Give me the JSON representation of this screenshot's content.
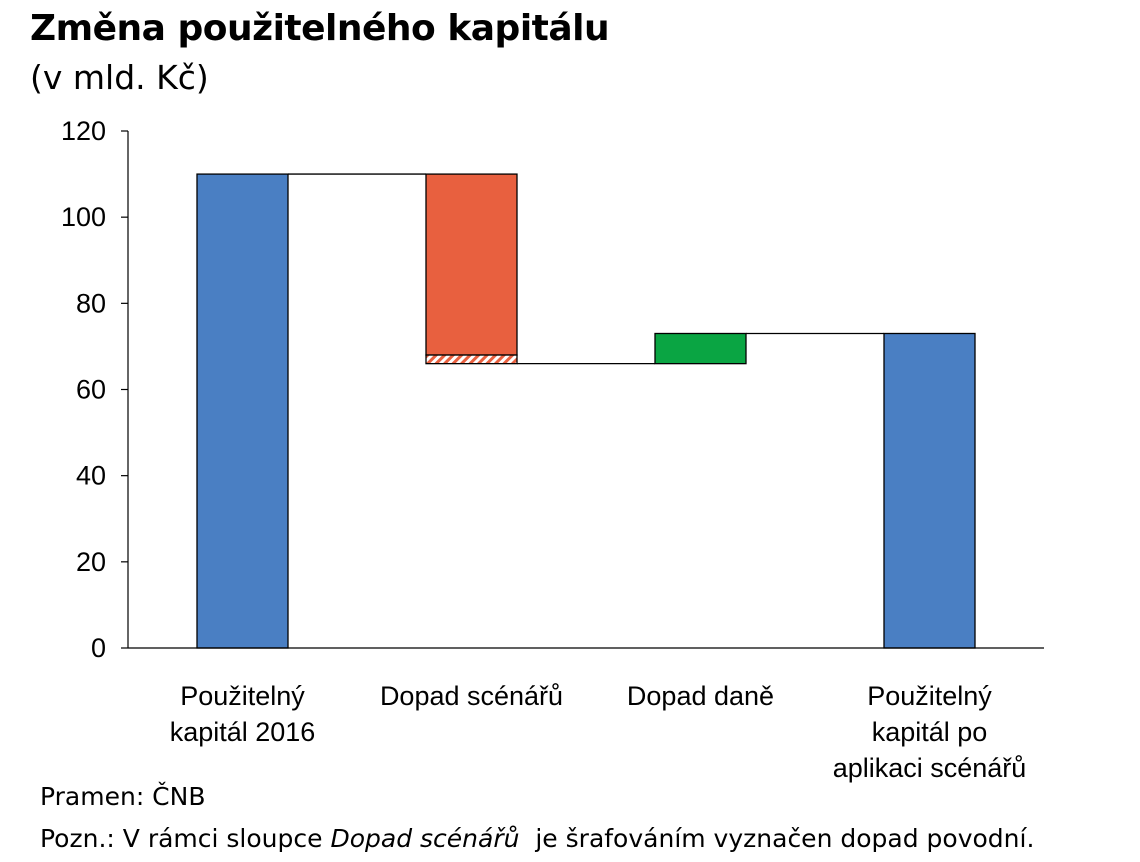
{
  "chart_data": {
    "type": "bar",
    "subtype": "waterfall",
    "title": "Změna použitelného kapitálu",
    "subtitle": "(v mld. Kč)",
    "categories": [
      [
        "Použitelný",
        "kapitál 2016"
      ],
      [
        "Dopad scénářů"
      ],
      [
        "Dopad daně"
      ],
      [
        "Použitelný",
        "kapitál po",
        "aplikaci scénářů"
      ]
    ],
    "bars": [
      {
        "category_index": 0,
        "kind": "total",
        "bottom": 0,
        "top": 110,
        "color": "#4a7fc3"
      },
      {
        "category_index": 1,
        "kind": "decrease",
        "bottom": 68,
        "top": 110,
        "color": "#e8603f"
      },
      {
        "category_index": 1,
        "kind": "decrease-hatched",
        "bottom": 66,
        "top": 68,
        "color": "#e8603f"
      },
      {
        "category_index": 2,
        "kind": "increase",
        "bottom": 66,
        "top": 73,
        "color": "#0aa543"
      },
      {
        "category_index": 3,
        "kind": "total",
        "bottom": 0,
        "top": 73,
        "color": "#4a7fc3"
      }
    ],
    "connectors": [
      {
        "from": 0,
        "to": 1,
        "level": 110
      },
      {
        "from": 1,
        "to": 2,
        "level": 66
      },
      {
        "from": 2,
        "to": 3,
        "level": 73
      }
    ],
    "ylim": [
      0,
      120
    ],
    "yticks": [
      0,
      20,
      40,
      60,
      80,
      100,
      120
    ],
    "grid": false,
    "legend": "none"
  },
  "footer": {
    "source": "Pramen: ČNB",
    "note_prefix": "Pozn.: V rámci sloupce ",
    "note_italic": "Dopad scénářů",
    "note_suffix": "  je šrafováním vyznačen dopad povodní."
  }
}
